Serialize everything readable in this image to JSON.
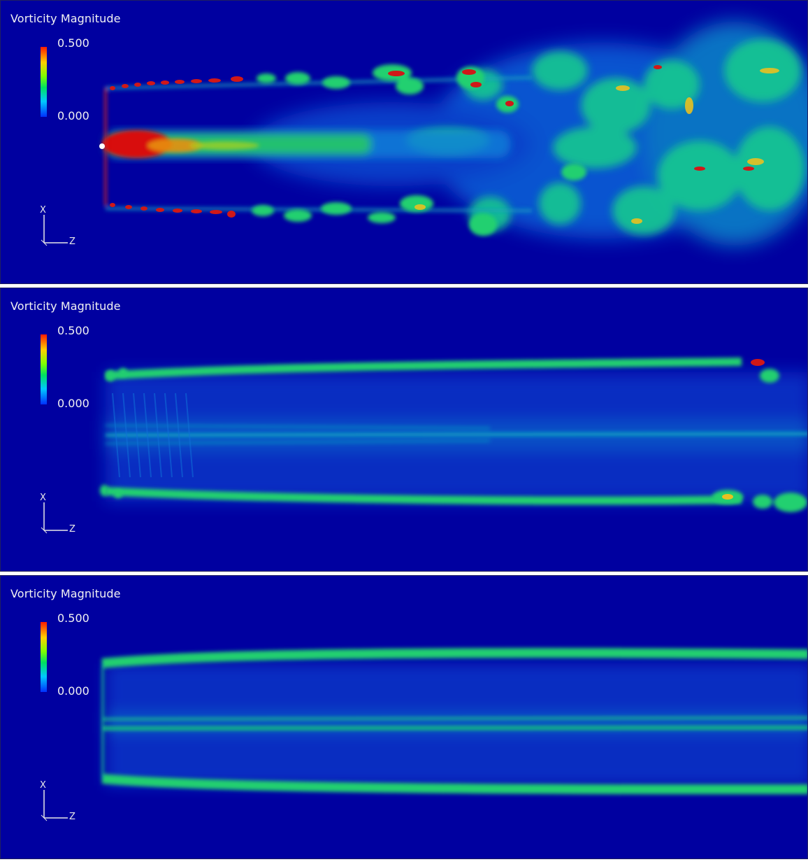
{
  "panels": [
    {
      "title": "Vorticity Magnitude",
      "colorbar": {
        "max": "0.500",
        "min": "0.000"
      },
      "axes": {
        "vertical": "X",
        "horizontal": "Z"
      },
      "flow_state": "turbulent breakdown"
    },
    {
      "title": "Vorticity Magnitude",
      "colorbar": {
        "max": "0.500",
        "min": "0.000"
      },
      "axes": {
        "vertical": "X",
        "horizontal": "Z"
      },
      "flow_state": "transitional"
    },
    {
      "title": "Vorticity Magnitude",
      "colorbar": {
        "max": "0.500",
        "min": "0.000"
      },
      "axes": {
        "vertical": "X",
        "horizontal": "Z"
      },
      "flow_state": "laminar"
    }
  ],
  "colors": {
    "background": "#0000a0",
    "low": "#0030ff",
    "mid": "#00d060",
    "high": "#ff1a00"
  }
}
